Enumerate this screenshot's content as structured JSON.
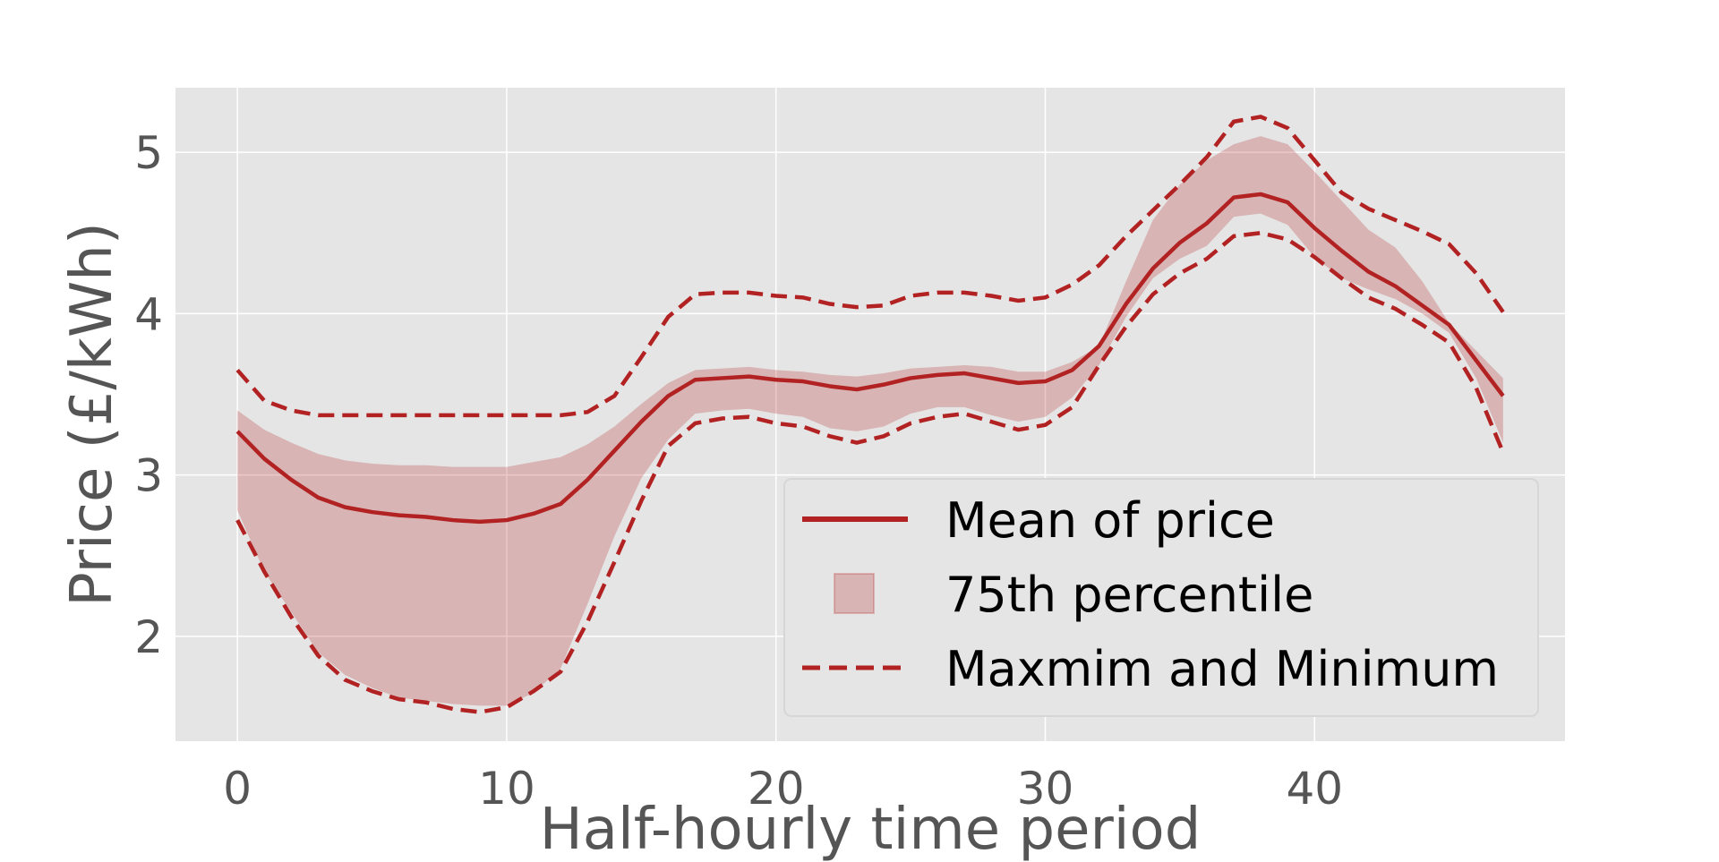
{
  "chart_data": {
    "type": "line",
    "xlabel": "Half-hourly time period",
    "ylabel": "Price (£/kWh)",
    "xlim": [
      -2.3,
      49.3
    ],
    "ylim": [
      1.35,
      5.4
    ],
    "xticks": [
      0,
      10,
      20,
      30,
      40
    ],
    "yticks": [
      2,
      3,
      4,
      5
    ],
    "grid": true,
    "legend_position": "lower-right",
    "colors": {
      "line": "#b22222",
      "band_fill": "#b22222",
      "band_opacity": 0.25,
      "plot_bg": "#e5e5e5",
      "grid": "#ffffff"
    },
    "x": [
      0,
      1,
      2,
      3,
      4,
      5,
      6,
      7,
      8,
      9,
      10,
      11,
      12,
      13,
      14,
      15,
      16,
      17,
      18,
      19,
      20,
      21,
      22,
      23,
      24,
      25,
      26,
      27,
      28,
      29,
      30,
      31,
      32,
      33,
      34,
      35,
      36,
      37,
      38,
      39,
      40,
      41,
      42,
      43,
      44,
      45,
      46,
      47
    ],
    "series": [
      {
        "name": "Mean of price",
        "style": "solid",
        "values": [
          3.27,
          3.1,
          2.97,
          2.86,
          2.8,
          2.77,
          2.75,
          2.74,
          2.72,
          2.71,
          2.72,
          2.76,
          2.82,
          2.97,
          3.15,
          3.33,
          3.49,
          3.59,
          3.6,
          3.61,
          3.59,
          3.58,
          3.55,
          3.53,
          3.56,
          3.6,
          3.62,
          3.63,
          3.6,
          3.57,
          3.58,
          3.65,
          3.8,
          4.06,
          4.28,
          4.44,
          4.56,
          4.72,
          4.74,
          4.69,
          4.53,
          4.39,
          4.26,
          4.17,
          4.05,
          3.93,
          3.71,
          3.49
        ]
      },
      {
        "name": "75th percentile",
        "style": "band",
        "upper": [
          3.4,
          3.28,
          3.2,
          3.13,
          3.09,
          3.07,
          3.06,
          3.06,
          3.05,
          3.05,
          3.05,
          3.08,
          3.11,
          3.19,
          3.3,
          3.44,
          3.57,
          3.65,
          3.66,
          3.67,
          3.65,
          3.64,
          3.62,
          3.61,
          3.63,
          3.66,
          3.67,
          3.68,
          3.67,
          3.64,
          3.64,
          3.7,
          3.8,
          4.2,
          4.58,
          4.8,
          4.95,
          5.05,
          5.1,
          5.05,
          4.88,
          4.7,
          4.52,
          4.41,
          4.2,
          3.94,
          3.77,
          3.6
        ],
        "lower": [
          2.78,
          2.4,
          2.15,
          1.9,
          1.76,
          1.68,
          1.62,
          1.6,
          1.58,
          1.57,
          1.57,
          1.65,
          1.8,
          2.2,
          2.62,
          2.98,
          3.22,
          3.38,
          3.4,
          3.41,
          3.38,
          3.36,
          3.29,
          3.27,
          3.3,
          3.38,
          3.42,
          3.42,
          3.37,
          3.33,
          3.36,
          3.48,
          3.68,
          3.98,
          4.22,
          4.34,
          4.42,
          4.6,
          4.62,
          4.55,
          4.35,
          4.22,
          4.15,
          4.09,
          4.0,
          3.88,
          3.6,
          3.2
        ]
      },
      {
        "name": "Maxmim and Minimum",
        "style": "dashed",
        "upper": [
          3.65,
          3.46,
          3.4,
          3.37,
          3.37,
          3.37,
          3.37,
          3.37,
          3.37,
          3.37,
          3.37,
          3.37,
          3.37,
          3.39,
          3.49,
          3.73,
          3.98,
          4.12,
          4.13,
          4.13,
          4.11,
          4.1,
          4.06,
          4.04,
          4.05,
          4.11,
          4.13,
          4.13,
          4.11,
          4.08,
          4.1,
          4.18,
          4.3,
          4.48,
          4.64,
          4.8,
          4.97,
          5.19,
          5.22,
          5.15,
          4.95,
          4.75,
          4.65,
          4.58,
          4.51,
          4.43,
          4.25,
          4.01
        ],
        "lower": [
          2.72,
          2.4,
          2.12,
          1.88,
          1.73,
          1.66,
          1.61,
          1.59,
          1.55,
          1.53,
          1.56,
          1.66,
          1.78,
          2.09,
          2.46,
          2.84,
          3.18,
          3.32,
          3.35,
          3.36,
          3.32,
          3.3,
          3.24,
          3.2,
          3.24,
          3.32,
          3.36,
          3.38,
          3.33,
          3.28,
          3.31,
          3.42,
          3.68,
          3.92,
          4.12,
          4.25,
          4.34,
          4.48,
          4.5,
          4.46,
          4.35,
          4.22,
          4.1,
          4.03,
          3.93,
          3.82,
          3.54,
          3.14
        ]
      }
    ]
  }
}
